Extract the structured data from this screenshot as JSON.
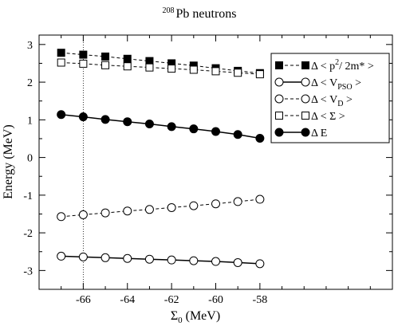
{
  "chart_data": {
    "type": "line",
    "title": {
      "sup": "208",
      "main": "Pb neutrons"
    },
    "xlabel": {
      "main": "Σ",
      "sub": "0",
      "unit": " (MeV)"
    },
    "ylabel": "Energy (MeV)",
    "xlim": [
      -68,
      -52
    ],
    "ylim": [
      -3.5,
      3.25
    ],
    "xticks": [
      -66,
      -64,
      -62,
      -60,
      -58
    ],
    "yticks": [
      -3,
      -2,
      -1,
      0,
      1,
      2,
      3
    ],
    "minor_xticks": [
      -67,
      -65,
      -63,
      -61,
      -59,
      -57,
      -56,
      -55,
      -54,
      -53
    ],
    "minor_yticks": [
      -3.5,
      -2.5,
      -1.5,
      -0.5,
      0.5,
      1.5,
      2.5
    ],
    "grid": false,
    "reference_line_x": -66,
    "legend_position": "upper-right",
    "x": [
      -67,
      -66,
      -65,
      -64,
      -63,
      -62,
      -61,
      -60,
      -59,
      -58
    ],
    "series": [
      {
        "name": {
          "parts": [
            [
              "Δ < p",
              ""
            ],
            [
              "2",
              "sup"
            ],
            [
              "/ 2m* >",
              ""
            ]
          ]
        },
        "marker": "square-filled",
        "line": "dashed",
        "values": [
          2.78,
          2.73,
          2.68,
          2.62,
          2.56,
          2.5,
          2.44,
          2.37,
          2.3,
          2.24
        ]
      },
      {
        "name": {
          "parts": [
            [
              "Δ < V",
              ""
            ],
            [
              "PSO",
              "sub"
            ],
            [
              " >",
              ""
            ]
          ]
        },
        "marker": "circle-open",
        "line": "solid",
        "values": [
          -2.62,
          -2.64,
          -2.66,
          -2.68,
          -2.7,
          -2.72,
          -2.74,
          -2.76,
          -2.79,
          -2.82
        ]
      },
      {
        "name": {
          "parts": [
            [
              "Δ < V",
              ""
            ],
            [
              "D",
              "sub"
            ],
            [
              " >",
              ""
            ]
          ]
        },
        "marker": "circle-open",
        "line": "dashed",
        "values": [
          -1.57,
          -1.52,
          -1.47,
          -1.42,
          -1.38,
          -1.33,
          -1.28,
          -1.23,
          -1.17,
          -1.11
        ]
      },
      {
        "name": {
          "parts": [
            [
              "Δ < Σ >",
              ""
            ]
          ]
        },
        "marker": "square-open",
        "line": "dashed",
        "values": [
          2.52,
          2.49,
          2.45,
          2.42,
          2.39,
          2.36,
          2.33,
          2.29,
          2.25,
          2.21
        ]
      },
      {
        "name": {
          "parts": [
            [
              "Δ E",
              ""
            ]
          ]
        },
        "marker": "circle-filled",
        "line": "solid",
        "values": [
          1.14,
          1.08,
          1.01,
          0.95,
          0.89,
          0.82,
          0.76,
          0.69,
          0.61,
          0.51
        ]
      }
    ]
  }
}
